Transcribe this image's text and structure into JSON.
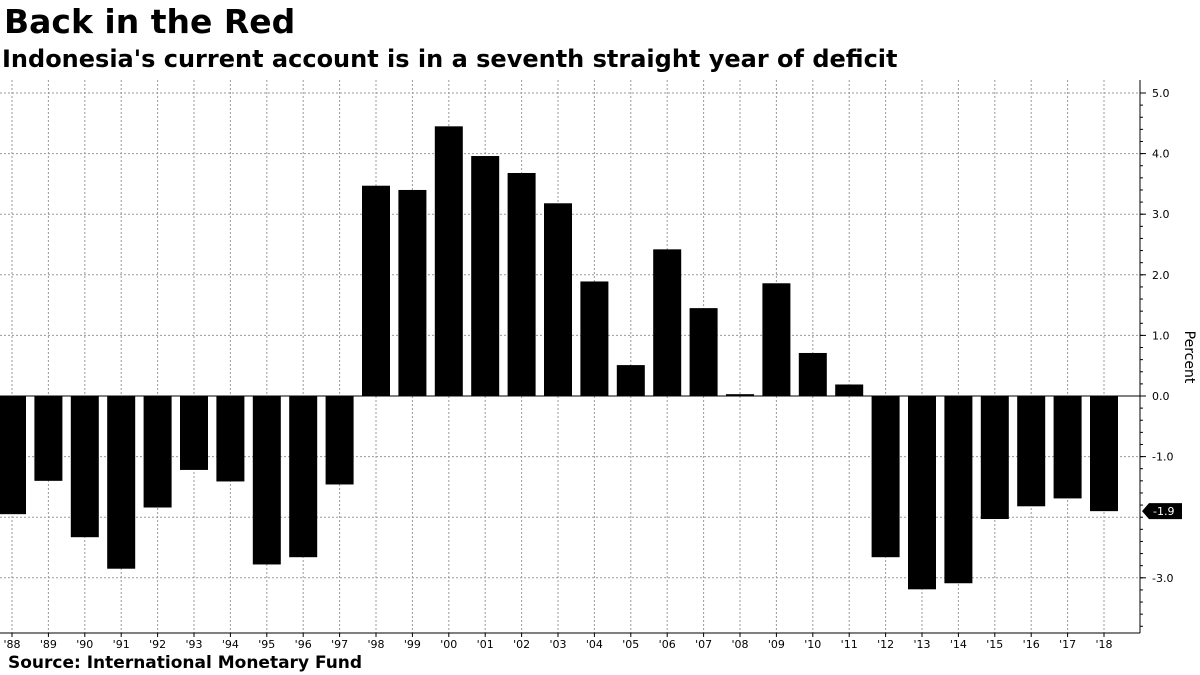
{
  "header": {
    "title": "Back in the Red",
    "subtitle": "Indonesia's current account is in a seventh straight year of deficit"
  },
  "footer": {
    "source": "Source: International Monetary Fund"
  },
  "chart_data": {
    "type": "bar",
    "title": "Back in the Red",
    "subtitle": "Indonesia's current account is in a seventh straight year of deficit",
    "xlabel": "",
    "ylabel": "Percent",
    "categories": [
      "'88",
      "'89",
      "'90",
      "'91",
      "'92",
      "'93",
      "'94",
      "'95",
      "'96",
      "'97",
      "'98",
      "'99",
      "'00",
      "'01",
      "'02",
      "'03",
      "'04",
      "'05",
      "'06",
      "'07",
      "'08",
      "'09",
      "'10",
      "'11",
      "'12",
      "'13",
      "'14",
      "'15",
      "'16",
      "'17",
      "'18"
    ],
    "values": [
      -1.95,
      -1.4,
      -2.33,
      -2.85,
      -1.84,
      -1.22,
      -1.41,
      -2.78,
      -2.66,
      -1.46,
      3.47,
      3.4,
      4.45,
      3.96,
      3.68,
      3.18,
      1.89,
      0.51,
      2.42,
      1.45,
      0.03,
      1.86,
      0.71,
      0.19,
      -2.66,
      -3.19,
      -3.09,
      -2.03,
      -1.82,
      -1.69,
      -1.9
    ],
    "yticks": [
      "5.0",
      "4.0",
      "3.0",
      "2.0",
      "1.0",
      "0.0",
      "-1.0",
      "-3.0"
    ],
    "last_value_label": "-1.9",
    "ylim": [
      -3.9,
      5.1
    ],
    "grid": true,
    "bar_color": "#000000",
    "y_axis_side": "right"
  }
}
